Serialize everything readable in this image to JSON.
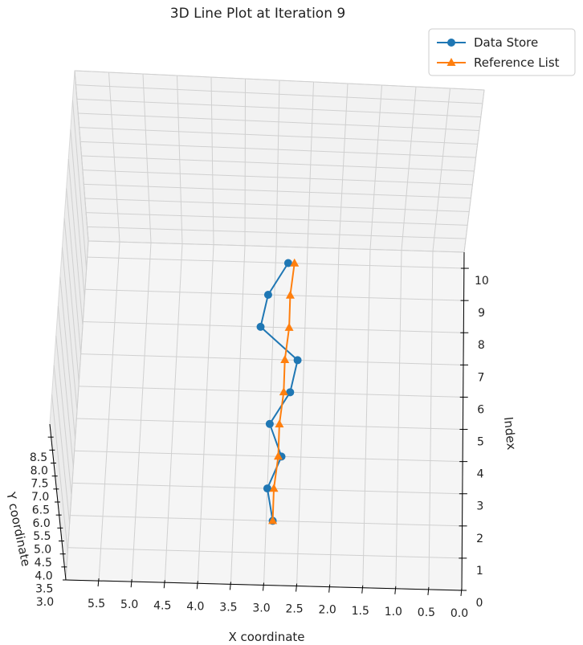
{
  "chart_data": {
    "type": "line",
    "projection": "3d",
    "title": "3D Line Plot at Iteration 9",
    "xlabel": "X coordinate",
    "ylabel": "Y coordinate",
    "zlabel": "Index",
    "xlim": [
      0.0,
      6.0
    ],
    "ylim": [
      3.0,
      9.0
    ],
    "zlim": [
      0,
      10.5
    ],
    "x_ticks": [
      "5.5",
      "5.0",
      "4.5",
      "4.0",
      "3.5",
      "3.0",
      "2.5",
      "2.0",
      "1.5",
      "1.0",
      "0.5",
      "0.0"
    ],
    "y_ticks": [
      "3.0",
      "3.5",
      "4.0",
      "4.5",
      "5.0",
      "5.5",
      "6.0",
      "6.5",
      "7.0",
      "7.5",
      "8.0",
      "8.5"
    ],
    "z_ticks": [
      "0",
      "1",
      "2",
      "3",
      "4",
      "5",
      "6",
      "7",
      "8",
      "9",
      "10"
    ],
    "grid": true,
    "legend_position": "top-right",
    "series": [
      {
        "name": "Data Store",
        "color": "#1f77b4",
        "marker": "circle",
        "points": [
          {
            "x": 2.9,
            "z": 2
          },
          {
            "x": 3.0,
            "z": 3
          },
          {
            "x": 2.8,
            "z": 4
          },
          {
            "x": 3.0,
            "z": 5
          },
          {
            "x": 2.7,
            "z": 6
          },
          {
            "x": 2.6,
            "z": 7
          },
          {
            "x": 3.2,
            "z": 8
          },
          {
            "x": 3.1,
            "z": 9
          },
          {
            "x": 2.8,
            "z": 10
          }
        ]
      },
      {
        "name": "Reference List",
        "color": "#ff7f0e",
        "marker": "triangle",
        "points": [
          {
            "x": 2.9,
            "z": 2
          },
          {
            "x": 2.9,
            "z": 3
          },
          {
            "x": 2.85,
            "z": 4
          },
          {
            "x": 2.85,
            "z": 5
          },
          {
            "x": 2.8,
            "z": 6
          },
          {
            "x": 2.8,
            "z": 7
          },
          {
            "x": 2.75,
            "z": 8
          },
          {
            "x": 2.75,
            "z": 9
          },
          {
            "x": 2.7,
            "z": 10
          }
        ]
      }
    ]
  }
}
